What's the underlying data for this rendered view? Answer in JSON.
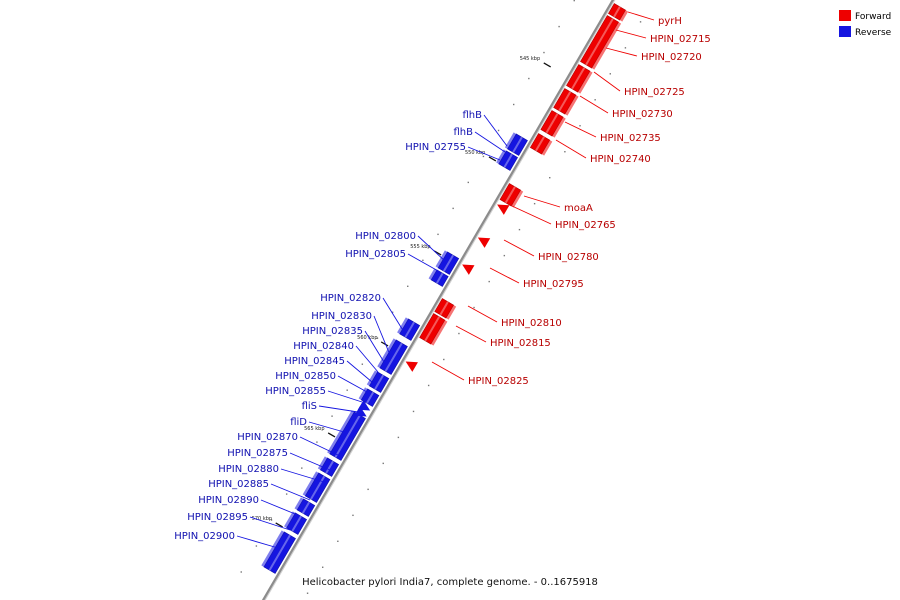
{
  "colors": {
    "forward": "#ee0000",
    "reverse": "#1515e0",
    "backbone": "#8c8c8c"
  },
  "legend": [
    {
      "label": "Forward",
      "color": "#ee0000"
    },
    {
      "label": "Reverse",
      "color": "#1515e0"
    }
  ],
  "caption": "Helicobacter pylori India7, complete genome. - 0..1675918",
  "ticks": [
    "545 kbp",
    "550 kbp",
    "555 kbp",
    "560 kbp",
    "565 kbp",
    "570 kbp"
  ],
  "forward_genes": [
    "pyrH",
    "HPIN_02715",
    "HPIN_02720",
    "HPIN_02725",
    "HPIN_02730",
    "HPIN_02735",
    "HPIN_02740",
    "moaA",
    "HPIN_02765",
    "HPIN_02780",
    "HPIN_02795",
    "HPIN_02810",
    "HPIN_02815",
    "HPIN_02825"
  ],
  "reverse_genes": [
    "flhB",
    "flhB",
    "HPIN_02755",
    "HPIN_02800",
    "HPIN_02805",
    "HPIN_02820",
    "HPIN_02830",
    "HPIN_02835",
    "HPIN_02840",
    "HPIN_02845",
    "HPIN_02850",
    "HPIN_02855",
    "fliS",
    "fliD",
    "HPIN_02870",
    "HPIN_02875",
    "HPIN_02880",
    "HPIN_02885",
    "HPIN_02890",
    "HPIN_02895",
    "HPIN_02900"
  ]
}
